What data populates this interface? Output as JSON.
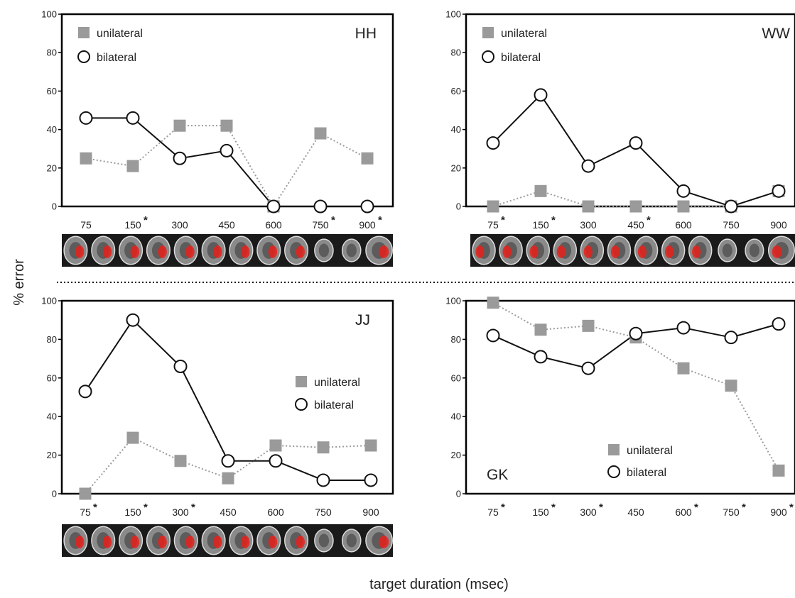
{
  "figure": {
    "ylabel": "% error",
    "xlabel": "target duration (msec)"
  },
  "colors": {
    "unilateral": "#9a9a9a",
    "bilateral_stroke": "#111111",
    "frame": "#000000",
    "brain_strip": "#1a1a1a",
    "lesion": "#e8201a"
  },
  "icons": {
    "unilateral_marker": "gray-square-marker",
    "bilateral_marker": "open-circle-marker",
    "brain_strip": "axial-mri-slices-with-lesion"
  },
  "chart_data": [
    {
      "type": "line",
      "subject": "HH",
      "categories": [
        "75",
        "150",
        "300",
        "450",
        "600",
        "750",
        "900"
      ],
      "significant": [
        false,
        true,
        false,
        false,
        false,
        true,
        true
      ],
      "series": [
        {
          "name": "unilateral",
          "values": [
            25,
            21,
            42,
            42,
            0,
            38,
            25
          ]
        },
        {
          "name": "bilateral",
          "values": [
            46,
            46,
            25,
            29,
            0,
            0,
            0
          ]
        }
      ],
      "ylim": [
        0,
        100
      ],
      "yticks": [
        "0",
        "20",
        "40",
        "60",
        "80",
        "100"
      ],
      "legend_position": "top-left",
      "has_brain_strip": true
    },
    {
      "type": "line",
      "subject": "WW",
      "categories": [
        "75",
        "150",
        "300",
        "450",
        "600",
        "750",
        "900"
      ],
      "significant": [
        true,
        true,
        false,
        true,
        false,
        false,
        false
      ],
      "series": [
        {
          "name": "unilateral",
          "values": [
            0,
            8,
            0,
            0,
            0,
            0,
            8
          ]
        },
        {
          "name": "bilateral",
          "values": [
            33,
            58,
            21,
            33,
            8,
            0,
            8
          ]
        }
      ],
      "ylim": [
        0,
        100
      ],
      "yticks": [
        "0",
        "20",
        "40",
        "60",
        "80",
        "100"
      ],
      "legend_position": "top-left",
      "has_brain_strip": true
    },
    {
      "type": "line",
      "subject": "JJ",
      "categories": [
        "75",
        "150",
        "300",
        "450",
        "600",
        "750",
        "900"
      ],
      "significant": [
        true,
        true,
        true,
        false,
        false,
        false,
        false
      ],
      "series": [
        {
          "name": "unilateral",
          "values": [
            0,
            29,
            17,
            8,
            25,
            24,
            25
          ]
        },
        {
          "name": "bilateral",
          "values": [
            53,
            90,
            66,
            17,
            17,
            7,
            7
          ]
        }
      ],
      "ylim": [
        0,
        100
      ],
      "yticks": [
        "0",
        "20",
        "40",
        "60",
        "80",
        "100"
      ],
      "legend_position": "middle-right",
      "has_brain_strip": true
    },
    {
      "type": "line",
      "subject": "GK",
      "categories": [
        "75",
        "150",
        "300",
        "450",
        "600",
        "750",
        "900"
      ],
      "significant": [
        true,
        true,
        true,
        false,
        true,
        true,
        true
      ],
      "series": [
        {
          "name": "unilateral",
          "values": [
            99,
            85,
            87,
            81,
            65,
            56,
            12
          ]
        },
        {
          "name": "bilateral",
          "values": [
            82,
            71,
            65,
            83,
            86,
            81,
            88
          ]
        }
      ],
      "ylim": [
        0,
        100
      ],
      "yticks": [
        "0",
        "20",
        "40",
        "60",
        "80",
        "100"
      ],
      "legend_position": "bottom-center",
      "has_brain_strip": false
    }
  ]
}
